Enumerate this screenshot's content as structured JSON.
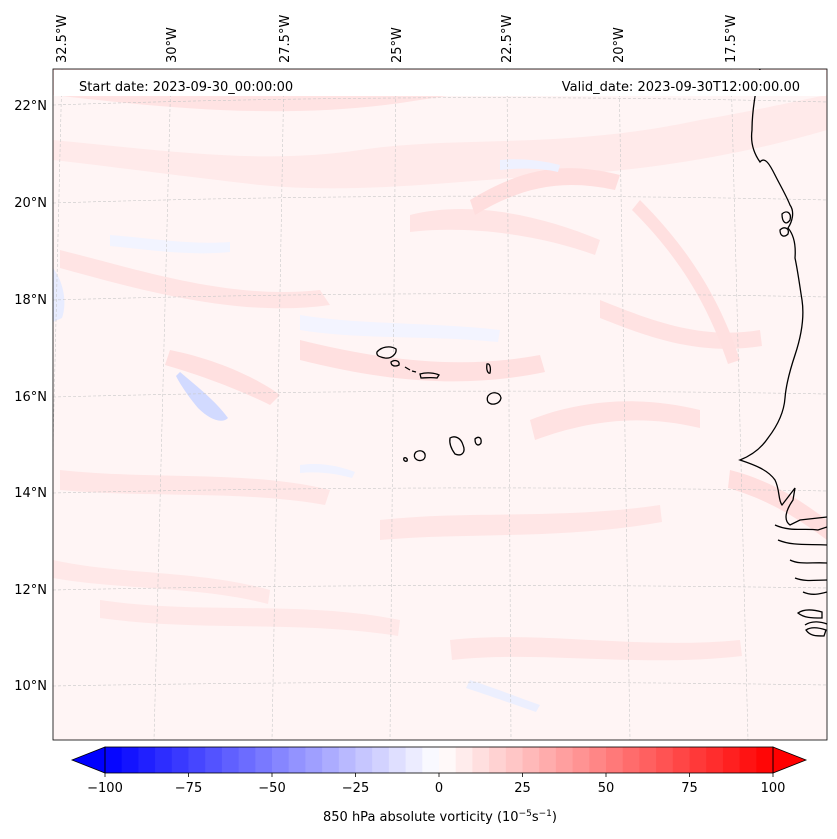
{
  "header": {
    "start_date": "Start date: 2023-09-30_00:00:00",
    "valid_date": "Valid_date: 2023-09-30T12:00:00.00"
  },
  "map": {
    "lon_labels": [
      "32.5°W",
      "30°W",
      "27.5°W",
      "25°W",
      "22.5°W",
      "20°W",
      "17.5°W"
    ],
    "lat_labels": [
      "22°N",
      "20°N",
      "18°N",
      "16°N",
      "14°N",
      "12°N",
      "10°N"
    ]
  },
  "colorbar": {
    "ticks": [
      "−100",
      "−75",
      "−50",
      "−25",
      "0",
      "25",
      "50",
      "75",
      "100"
    ],
    "tick_values": [
      -100,
      -75,
      -50,
      -25,
      0,
      25,
      50,
      75,
      100
    ],
    "label": "850 hPa absolute vorticity (10",
    "label_exp1": "−5",
    "label_unit": "s",
    "label_exp2": "−1",
    "label_close": ")",
    "min": -100,
    "max": 100,
    "step": 5,
    "color_neg": "#0000ff",
    "color_mid": "#ffffff",
    "color_pos": "#ff0000"
  },
  "colors": {
    "background_field": "#fff5f5",
    "coastline": "#000000",
    "gridline": "#c8c8c8"
  }
}
